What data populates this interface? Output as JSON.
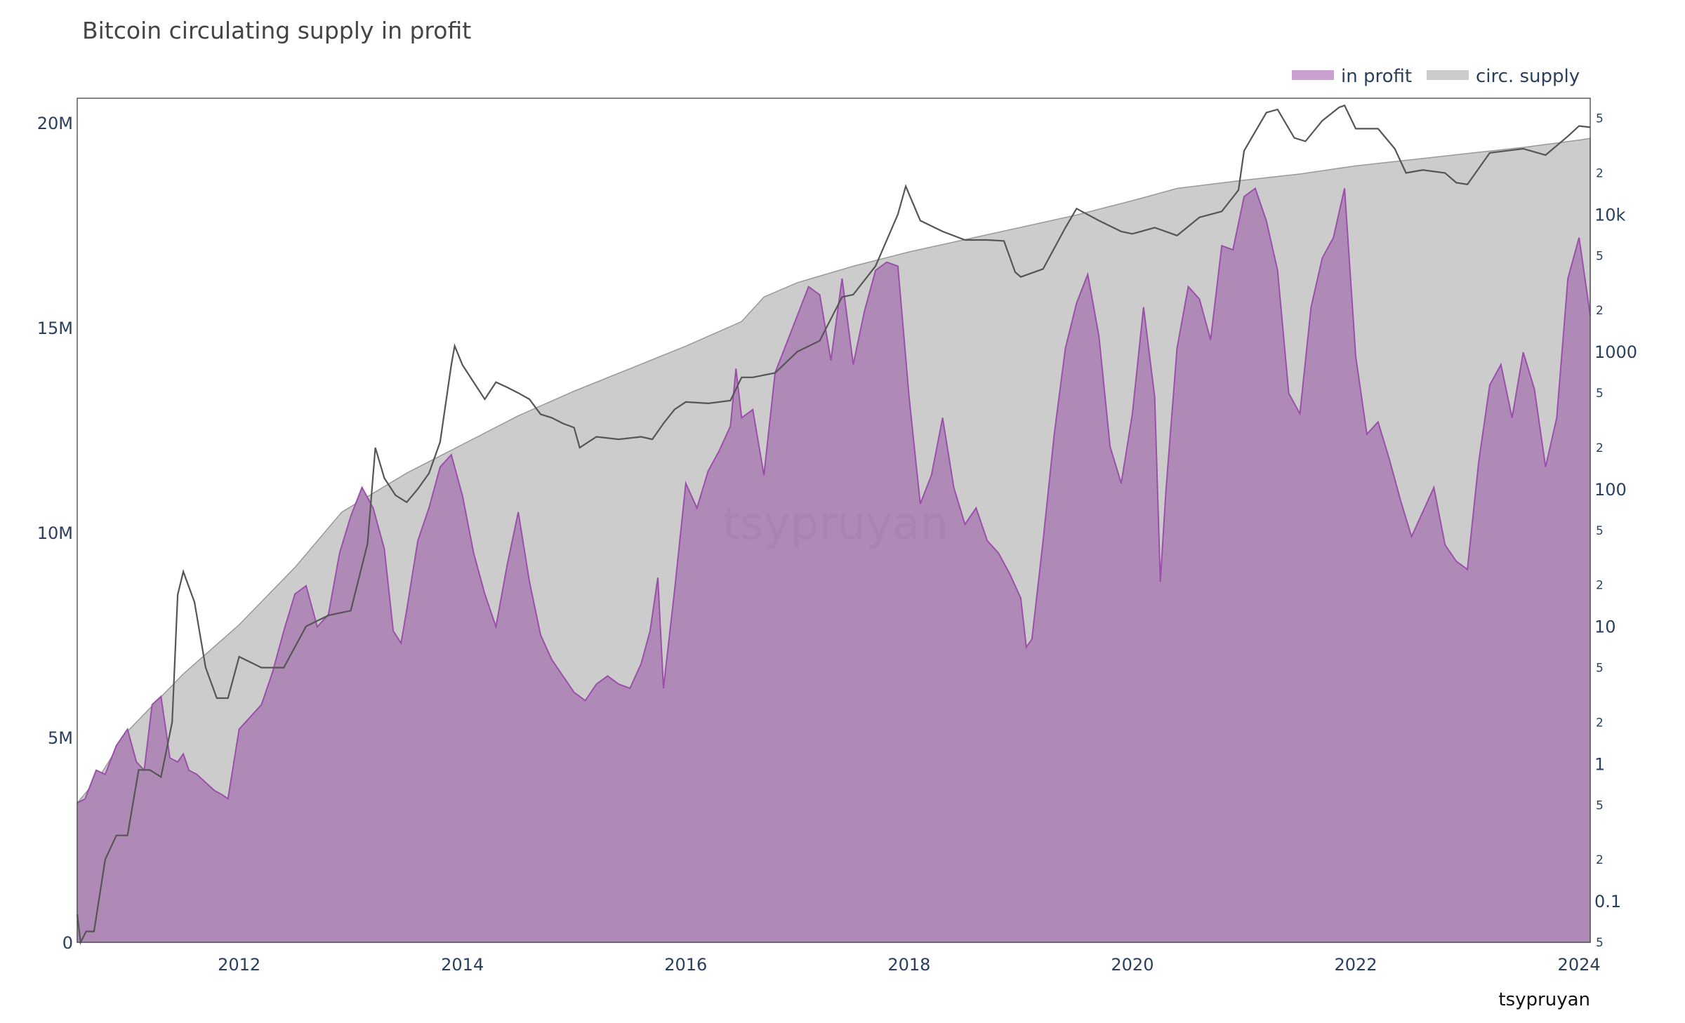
{
  "chart_data": {
    "type": "area",
    "title": "Bitcoin circulating supply in profit",
    "xlabel": "",
    "ylabel": "",
    "xlim": [
      2010.55,
      2024.1
    ],
    "ylim": [
      0,
      20600000
    ],
    "y2_log_range": [
      0.05,
      70000
    ],
    "x_ticks": [
      2012,
      2014,
      2016,
      2018,
      2020,
      2022,
      2024
    ],
    "x_tick_labels": [
      "2012",
      "2014",
      "2016",
      "2018",
      "2020",
      "2022",
      "2024"
    ],
    "y_ticks": [
      0,
      5000000,
      10000000,
      15000000,
      20000000
    ],
    "y_tick_labels": [
      "0",
      "5M",
      "10M",
      "15M",
      "20M"
    ],
    "y2_major_ticks": [
      0.1,
      1,
      10,
      100,
      1000,
      10000
    ],
    "y2_major_labels": [
      "0.1",
      "1",
      "10",
      "100",
      "1000",
      "10k"
    ],
    "y2_minor_ticks": [
      0.05,
      0.2,
      0.5,
      2,
      5,
      20,
      50,
      200,
      500,
      2000,
      5000,
      20000,
      50000
    ],
    "y2_minor_labels": [
      "5",
      "2",
      "5",
      "2",
      "5",
      "2",
      "5",
      "2",
      "5",
      "2",
      "5",
      "2",
      "5"
    ],
    "legend": {
      "position": "top-right",
      "entries": [
        {
          "label": "in profit",
          "color": "#c9a0d0"
        },
        {
          "label": "circ. supply",
          "color": "#cccccc"
        }
      ]
    },
    "grid": false,
    "series": [
      {
        "name": "circ. supply",
        "color": "#cccccc",
        "x": [
          2010.55,
          2010.75,
          2011.0,
          2011.5,
          2012.0,
          2012.5,
          2012.92,
          2013.5,
          2014.0,
          2014.5,
          2015.0,
          2015.5,
          2016.0,
          2016.5,
          2016.7,
          2017.0,
          2017.5,
          2018.0,
          2018.5,
          2019.0,
          2019.5,
          2020.0,
          2020.4,
          2021.0,
          2021.5,
          2022.0,
          2022.5,
          2023.0,
          2023.5,
          2024.0,
          2024.1
        ],
        "values": [
          3400000,
          4050000,
          5150000,
          6550000,
          7750000,
          9150000,
          10500000,
          11450000,
          12150000,
          12850000,
          13450000,
          14000000,
          14550000,
          15150000,
          15750000,
          16100000,
          16500000,
          16850000,
          17150000,
          17450000,
          17750000,
          18100000,
          18400000,
          18600000,
          18750000,
          18950000,
          19100000,
          19250000,
          19400000,
          19580000,
          19620000
        ]
      },
      {
        "name": "in profit",
        "color": "#b08ab6",
        "line_color": "#9b4faa",
        "x": [
          2010.55,
          2010.62,
          2010.72,
          2010.8,
          2010.9,
          2011.0,
          2011.08,
          2011.15,
          2011.22,
          2011.3,
          2011.38,
          2011.45,
          2011.5,
          2011.55,
          2011.62,
          2011.7,
          2011.78,
          2011.85,
          2011.9,
          2012.0,
          2012.1,
          2012.2,
          2012.3,
          2012.4,
          2012.5,
          2012.6,
          2012.7,
          2012.8,
          2012.9,
          2013.0,
          2013.1,
          2013.2,
          2013.3,
          2013.38,
          2013.45,
          2013.5,
          2013.6,
          2013.7,
          2013.8,
          2013.9,
          2014.0,
          2014.1,
          2014.2,
          2014.3,
          2014.4,
          2014.5,
          2014.6,
          2014.7,
          2014.8,
          2014.9,
          2015.0,
          2015.1,
          2015.2,
          2015.3,
          2015.4,
          2015.5,
          2015.6,
          2015.68,
          2015.75,
          2015.8,
          2015.9,
          2016.0,
          2016.1,
          2016.2,
          2016.3,
          2016.4,
          2016.45,
          2016.5,
          2016.6,
          2016.7,
          2016.8,
          2016.9,
          2017.0,
          2017.1,
          2017.2,
          2017.3,
          2017.4,
          2017.5,
          2017.6,
          2017.7,
          2017.8,
          2017.9,
          2018.0,
          2018.05,
          2018.1,
          2018.2,
          2018.3,
          2018.4,
          2018.5,
          2018.6,
          2018.7,
          2018.8,
          2018.9,
          2019.0,
          2019.05,
          2019.1,
          2019.2,
          2019.3,
          2019.4,
          2019.5,
          2019.6,
          2019.7,
          2019.8,
          2019.9,
          2020.0,
          2020.1,
          2020.2,
          2020.25,
          2020.3,
          2020.4,
          2020.5,
          2020.6,
          2020.7,
          2020.8,
          2020.9,
          2021.0,
          2021.1,
          2021.2,
          2021.3,
          2021.4,
          2021.5,
          2021.6,
          2021.7,
          2021.8,
          2021.9,
          2022.0,
          2022.1,
          2022.2,
          2022.3,
          2022.4,
          2022.5,
          2022.6,
          2022.7,
          2022.8,
          2022.9,
          2023.0,
          2023.1,
          2023.2,
          2023.3,
          2023.4,
          2023.5,
          2023.6,
          2023.7,
          2023.8,
          2023.9,
          2024.0,
          2024.1
        ],
        "values": [
          3400000,
          3500000,
          4200000,
          4100000,
          4800000,
          5200000,
          4400000,
          4200000,
          5800000,
          6000000,
          4500000,
          4400000,
          4600000,
          4200000,
          4100000,
          3900000,
          3700000,
          3600000,
          3500000,
          5200000,
          5500000,
          5800000,
          6600000,
          7600000,
          8500000,
          8700000,
          7700000,
          8000000,
          9500000,
          10400000,
          11100000,
          10600000,
          9600000,
          7600000,
          7300000,
          8100000,
          9800000,
          10600000,
          11600000,
          11900000,
          10900000,
          9500000,
          8500000,
          7700000,
          9200000,
          10500000,
          8800000,
          7500000,
          6900000,
          6500000,
          6100000,
          5900000,
          6300000,
          6500000,
          6300000,
          6200000,
          6800000,
          7600000,
          8900000,
          6200000,
          8600000,
          11200000,
          10600000,
          11500000,
          12000000,
          12600000,
          14000000,
          12800000,
          13000000,
          11400000,
          13900000,
          14600000,
          15300000,
          16000000,
          15800000,
          14200000,
          16200000,
          14100000,
          15400000,
          16400000,
          16600000,
          16500000,
          13300000,
          12000000,
          10700000,
          11400000,
          12800000,
          11100000,
          10200000,
          10600000,
          9800000,
          9500000,
          9000000,
          8400000,
          7200000,
          7400000,
          9800000,
          12400000,
          14500000,
          15600000,
          16300000,
          14800000,
          12100000,
          11200000,
          12900000,
          15500000,
          13300000,
          8800000,
          11000000,
          14500000,
          16000000,
          15700000,
          14700000,
          17000000,
          16900000,
          18200000,
          18400000,
          17600000,
          16400000,
          13400000,
          12900000,
          15500000,
          16700000,
          17200000,
          18400000,
          14300000,
          12400000,
          12700000,
          11800000,
          10800000,
          9900000,
          10500000,
          11100000,
          9700000,
          9300000,
          9100000,
          11700000,
          13600000,
          14100000,
          12800000,
          14400000,
          13500000,
          11600000,
          12800000,
          16200000,
          17200000,
          15300000
        ]
      },
      {
        "name": "",
        "color": "#555555",
        "axis": "y2",
        "x": [
          2010.55,
          2010.58,
          2010.63,
          2010.7,
          2010.8,
          2010.9,
          2011.0,
          2011.1,
          2011.2,
          2011.3,
          2011.4,
          2011.45,
          2011.5,
          2011.6,
          2011.7,
          2011.8,
          2011.9,
          2012.0,
          2012.2,
          2012.4,
          2012.6,
          2012.8,
          2013.0,
          2013.15,
          2013.22,
          2013.3,
          2013.4,
          2013.5,
          2013.6,
          2013.7,
          2013.8,
          2013.9,
          2013.93,
          2014.0,
          2014.1,
          2014.2,
          2014.3,
          2014.4,
          2014.5,
          2014.6,
          2014.7,
          2014.8,
          2014.9,
          2015.0,
          2015.05,
          2015.2,
          2015.4,
          2015.6,
          2015.7,
          2015.8,
          2015.9,
          2016.0,
          2016.2,
          2016.4,
          2016.5,
          2016.6,
          2016.8,
          2017.0,
          2017.2,
          2017.4,
          2017.5,
          2017.7,
          2017.9,
          2017.97,
          2018.1,
          2018.3,
          2018.5,
          2018.7,
          2018.85,
          2018.95,
          2019.0,
          2019.2,
          2019.4,
          2019.5,
          2019.7,
          2019.9,
          2020.0,
          2020.2,
          2020.4,
          2020.6,
          2020.8,
          2020.95,
          2021.0,
          2021.1,
          2021.2,
          2021.3,
          2021.45,
          2021.55,
          2021.7,
          2021.85,
          2021.9,
          2022.0,
          2022.2,
          2022.35,
          2022.45,
          2022.6,
          2022.8,
          2022.9,
          2023.0,
          2023.2,
          2023.5,
          2023.7,
          2023.9,
          2024.0,
          2024.1
        ],
        "values": [
          0.08,
          0.05,
          0.06,
          0.06,
          0.2,
          0.3,
          0.3,
          0.9,
          0.9,
          0.8,
          2,
          17,
          25,
          15,
          5,
          3,
          3,
          6,
          5,
          5,
          10,
          12,
          13,
          40,
          200,
          120,
          90,
          80,
          100,
          130,
          220,
          800,
          1100,
          800,
          600,
          450,
          600,
          550,
          500,
          450,
          350,
          330,
          300,
          280,
          200,
          240,
          230,
          240,
          230,
          300,
          380,
          430,
          420,
          440,
          650,
          650,
          700,
          1000,
          1200,
          2500,
          2600,
          4200,
          10000,
          16000,
          9000,
          7500,
          6500,
          6500,
          6400,
          3800,
          3500,
          4000,
          8000,
          11000,
          9000,
          7500,
          7200,
          8000,
          7000,
          9500,
          10500,
          15000,
          29000,
          40000,
          55000,
          58000,
          36000,
          34000,
          48000,
          60000,
          62000,
          42000,
          42000,
          30000,
          20000,
          21000,
          20000,
          17000,
          16500,
          28000,
          30000,
          27000,
          37000,
          44000,
          43000
        ]
      }
    ],
    "watermark": "tsypruyan",
    "credit": "tsypruyan"
  }
}
